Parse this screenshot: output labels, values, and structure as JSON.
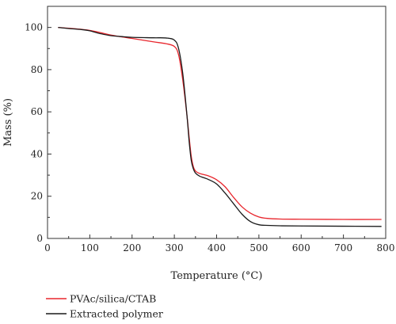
{
  "chart_data": {
    "type": "line",
    "xlabel": "Temperature (°C)",
    "ylabel": "Mass (%)",
    "xlim": [
      0,
      800
    ],
    "ylim": [
      0,
      110
    ],
    "xticks": [
      0,
      100,
      200,
      300,
      400,
      500,
      600,
      700,
      800
    ],
    "yticks": [
      0,
      20,
      40,
      60,
      80,
      100
    ],
    "grid": false,
    "legend_position": "bottom-left",
    "series": [
      {
        "name": "PVAc/silica/CTAB",
        "color": "#e8262d",
        "x": [
          25,
          50,
          80,
          100,
          120,
          150,
          180,
          200,
          250,
          280,
          300,
          310,
          320,
          330,
          335,
          340,
          345,
          350,
          360,
          380,
          400,
          420,
          440,
          460,
          480,
          500,
          520,
          550,
          600,
          700,
          790
        ],
        "y": [
          100,
          99.6,
          99.1,
          98.6,
          97.8,
          96.4,
          95.4,
          94.8,
          93.2,
          92.3,
          91.0,
          87.0,
          75.0,
          58.0,
          48.0,
          39.0,
          34.0,
          32.0,
          30.8,
          29.7,
          27.8,
          24.5,
          19.5,
          15.0,
          12.0,
          10.2,
          9.5,
          9.2,
          9.1,
          9.0,
          9.0
        ]
      },
      {
        "name": "Extracted polymer",
        "color": "#1a1a1a",
        "x": [
          25,
          50,
          80,
          100,
          120,
          150,
          180,
          200,
          250,
          280,
          300,
          310,
          320,
          330,
          335,
          340,
          345,
          350,
          360,
          380,
          400,
          420,
          440,
          460,
          480,
          500,
          520,
          550,
          600,
          700,
          790
        ],
        "y": [
          100,
          99.5,
          99.0,
          98.4,
          97.3,
          96.1,
          95.6,
          95.3,
          95.1,
          95.0,
          94.0,
          90.0,
          78.0,
          58.0,
          46.0,
          37.0,
          33.0,
          31.0,
          29.5,
          28.0,
          25.8,
          21.5,
          16.5,
          11.5,
          8.0,
          6.5,
          6.2,
          6.0,
          5.9,
          5.8,
          5.7
        ]
      }
    ]
  }
}
